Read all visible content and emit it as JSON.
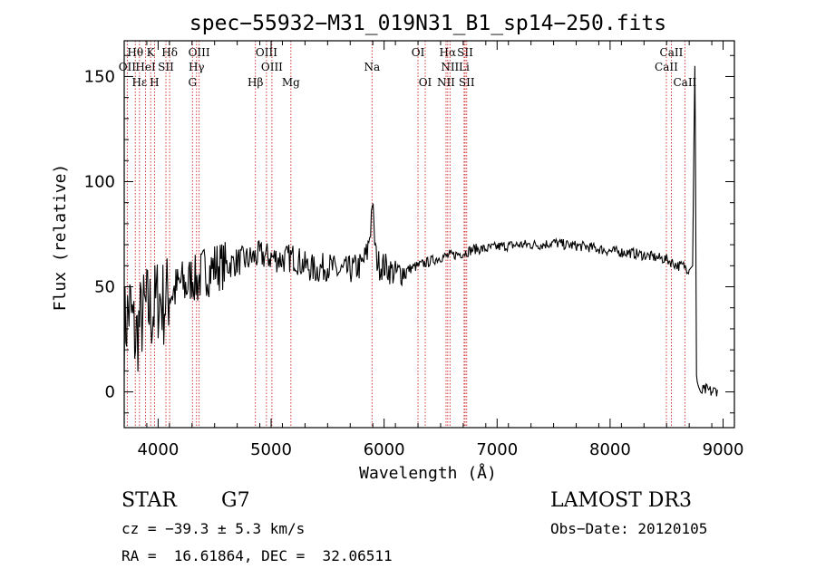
{
  "chart_data": {
    "type": "line",
    "title": "spec−55932−M31_019N31_B1_sp14−250.fits",
    "xlabel": "Wavelength (Å)",
    "ylabel": "Flux (relative)",
    "xlim": [
      3700,
      9100
    ],
    "ylim": [
      -17,
      167
    ],
    "x_ticks": [
      4000,
      5000,
      6000,
      7000,
      8000,
      9000
    ],
    "x_tick_labels": [
      "4000",
      "5000",
      "6000",
      "7000",
      "8000",
      "9000"
    ],
    "y_ticks": [
      0,
      50,
      100,
      150
    ],
    "y_tick_labels": [
      "0",
      "50",
      "100",
      "150"
    ],
    "series": [
      {
        "name": "flux",
        "x": [
          3700,
          3750,
          3800,
          3850,
          3900,
          3950,
          4000,
          4050,
          4100,
          4150,
          4200,
          4250,
          4300,
          4350,
          4400,
          4450,
          4500,
          4600,
          4700,
          4800,
          4900,
          5000,
          5100,
          5200,
          5300,
          5400,
          5500,
          5600,
          5700,
          5800,
          5850,
          5880,
          5895,
          5910,
          5930,
          5960,
          6000,
          6100,
          6200,
          6300,
          6400,
          6500,
          6600,
          6700,
          6800,
          6900,
          7000,
          7200,
          7400,
          7500,
          7600,
          7800,
          8000,
          8200,
          8400,
          8500,
          8600,
          8650,
          8700,
          8730,
          8750,
          8755,
          8760,
          8765,
          8770,
          8780,
          8800,
          8850,
          8900,
          8950
        ],
        "y": [
          30,
          40,
          25,
          35,
          40,
          38,
          45,
          42,
          47,
          48,
          52,
          50,
          55,
          52,
          58,
          57,
          60,
          60,
          62,
          63,
          65,
          64,
          63,
          64,
          60,
          58,
          60,
          57,
          58,
          60,
          66,
          78,
          92,
          76,
          64,
          60,
          60,
          56,
          58,
          60,
          62,
          64,
          65,
          66,
          68,
          68,
          69,
          70,
          70,
          71,
          70,
          69,
          67,
          66,
          64,
          63,
          60,
          60,
          58,
          60,
          155,
          120,
          60,
          8,
          5,
          3,
          0,
          1,
          0,
          1
        ]
      }
    ],
    "lines_top": [
      {
        "label": "Hθ",
        "x": 3798
      },
      {
        "label": "K",
        "x": 3934
      },
      {
        "label": "Hδ",
        "x": 4102
      },
      {
        "label": "OIII",
        "x": 4363
      },
      {
        "label": "OIII",
        "x": 4959
      },
      {
        "label": "OI",
        "x": 6300
      },
      {
        "label": "Hα",
        "x": 6563
      },
      {
        "label": "SII",
        "x": 6717
      },
      {
        "label": "CaII",
        "x": 8542
      }
    ],
    "lines_mid": [
      {
        "label": "OII",
        "x": 3727
      },
      {
        "label": "HeI",
        "x": 3889
      },
      {
        "label": "SII",
        "x": 4069
      },
      {
        "label": "Hγ",
        "x": 4340
      },
      {
        "label": "OIII",
        "x": 5007
      },
      {
        "label": "Na",
        "x": 5893
      },
      {
        "label": "NII",
        "x": 6583
      },
      {
        "label": "Li",
        "x": 6708
      },
      {
        "label": "CaII",
        "x": 8498
      }
    ],
    "lines_bot": [
      {
        "label": "Hε",
        "x": 3835
      },
      {
        "label": "H",
        "x": 3968
      },
      {
        "label": "G",
        "x": 4304
      },
      {
        "label": "Hβ",
        "x": 4861
      },
      {
        "label": "Mg",
        "x": 5175
      },
      {
        "label": "OI",
        "x": 6364
      },
      {
        "label": "NII",
        "x": 6548
      },
      {
        "label": "SII",
        "x": 6731
      },
      {
        "label": "CaII",
        "x": 8662
      }
    ]
  },
  "info": {
    "object_class": "STAR",
    "subclass": "G7",
    "survey": "LAMOST DR3",
    "velocity": "cz = −39.3 ± 5.3 km/s",
    "obs_date": "Obs−Date: 20120105",
    "coords": "RA =  16.61864, DEC =  32.06511"
  },
  "colors": {
    "spectrum": "#000000",
    "line_markers": "#cc2222",
    "axes": "#000000"
  }
}
